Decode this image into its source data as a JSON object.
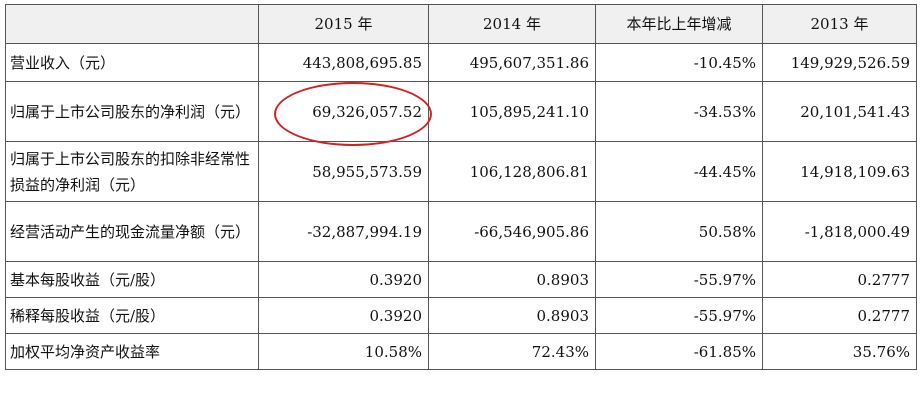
{
  "table": {
    "header": [
      "",
      "2015 年",
      "2014 年",
      "本年比上年增减",
      "2013 年"
    ],
    "rows": [
      {
        "label": "营业收入（元）",
        "y2015": "443,808,695.85",
        "y2014": "495,607,351.86",
        "change": "-10.45%",
        "y2013": "149,929,526.59"
      },
      {
        "label": "归属于上市公司股东的净利润（元）",
        "y2015": "69,326,057.52",
        "y2014": "105,895,241.10",
        "change": "-34.53%",
        "y2013": "20,101,541.43"
      },
      {
        "label": "归属于上市公司股东的扣除非经常性损益的净利润（元）",
        "y2015": "58,955,573.59",
        "y2014": "106,128,806.81",
        "change": "-44.45%",
        "y2013": "14,918,109.63"
      },
      {
        "label": "经营活动产生的现金流量净额（元）",
        "y2015": "-32,887,994.19",
        "y2014": "-66,546,905.86",
        "change": "50.58%",
        "y2013": "-1,818,000.49"
      },
      {
        "label": "基本每股收益（元/股）",
        "y2015": "0.3920",
        "y2014": "0.8903",
        "change": "-55.97%",
        "y2013": "0.2777"
      },
      {
        "label": "稀释每股收益（元/股）",
        "y2015": "0.3920",
        "y2014": "0.8903",
        "change": "-55.97%",
        "y2013": "0.2777"
      },
      {
        "label": "加权平均净资产收益率",
        "y2015": "10.58%",
        "y2014": "72.43%",
        "change": "-61.85%",
        "y2013": "35.76%"
      }
    ]
  },
  "annotation": {
    "color": "#d52020"
  }
}
